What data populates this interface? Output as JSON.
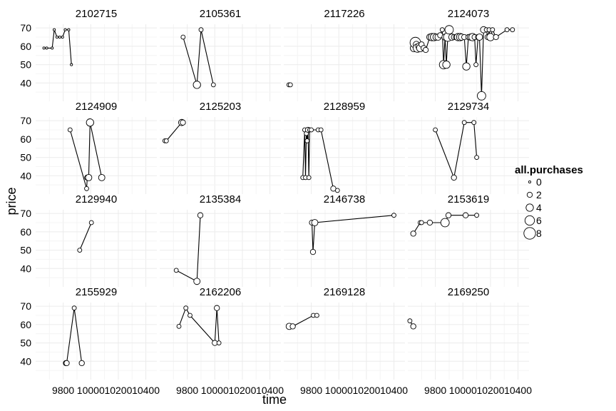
{
  "chart_data": {
    "type": "scatter",
    "xlabel": "time",
    "ylabel": "price",
    "xlim": [
      9600,
      10480
    ],
    "ylim": [
      30,
      72
    ],
    "x_ticks": [
      9800,
      10000,
      10200,
      10400
    ],
    "y_ticks": [
      40,
      50,
      60,
      70
    ],
    "legend": {
      "title": "all.purchases",
      "placement": "right",
      "sizes": [
        0,
        2,
        4,
        6,
        8
      ]
    },
    "panels": [
      {
        "id": "2102715",
        "points": [
          [
            9660,
            59,
            0
          ],
          [
            9680,
            59,
            0
          ],
          [
            9720,
            59,
            0
          ],
          [
            9735,
            69,
            0
          ],
          [
            9755,
            65,
            0
          ],
          [
            9775,
            65,
            0
          ],
          [
            9795,
            65,
            0
          ],
          [
            9815,
            69,
            0
          ],
          [
            9840,
            69,
            0
          ],
          [
            9860,
            50,
            0
          ]
        ]
      },
      {
        "id": "2105361",
        "points": [
          [
            9770,
            65,
            1
          ],
          [
            9870,
            39,
            4
          ],
          [
            9900,
            69,
            1
          ],
          [
            9990,
            39,
            1
          ]
        ]
      },
      {
        "id": "2117226",
        "points": [
          [
            9638,
            39,
            1
          ],
          [
            9648,
            39,
            1
          ]
        ]
      },
      {
        "id": "2124073",
        "points": [
          [
            9645,
            59,
            4
          ],
          [
            9655,
            62,
            7
          ],
          [
            9662,
            61,
            3
          ],
          [
            9670,
            59,
            5
          ],
          [
            9680,
            60,
            3
          ],
          [
            9690,
            59,
            4
          ],
          [
            9700,
            61,
            2
          ],
          [
            9715,
            59,
            2
          ],
          [
            9730,
            58,
            2
          ],
          [
            9760,
            65,
            3
          ],
          [
            9775,
            65,
            4
          ],
          [
            9790,
            65,
            4
          ],
          [
            9805,
            65,
            3
          ],
          [
            9820,
            65,
            3
          ],
          [
            9835,
            66,
            2
          ],
          [
            9850,
            69,
            1
          ],
          [
            9860,
            50,
            5
          ],
          [
            9870,
            65,
            3
          ],
          [
            9880,
            50,
            4
          ],
          [
            9890,
            65,
            5
          ],
          [
            9900,
            69,
            5
          ],
          [
            9920,
            65,
            3
          ],
          [
            9935,
            65,
            2
          ],
          [
            9950,
            65,
            2
          ],
          [
            9965,
            65,
            4
          ],
          [
            9980,
            65,
            4
          ],
          [
            9990,
            65,
            3
          ],
          [
            10010,
            65,
            2
          ],
          [
            10025,
            49,
            4
          ],
          [
            10040,
            65,
            2
          ],
          [
            10055,
            65,
            3
          ],
          [
            10070,
            65,
            4
          ],
          [
            10085,
            65,
            2
          ],
          [
            10095,
            50,
            1
          ],
          [
            10110,
            65,
            2
          ],
          [
            10120,
            65,
            3
          ],
          [
            10135,
            33,
            5
          ],
          [
            10150,
            69,
            3
          ],
          [
            10170,
            69,
            1
          ],
          [
            10180,
            65,
            2
          ],
          [
            10190,
            69,
            1
          ],
          [
            10200,
            65,
            4
          ],
          [
            10215,
            69,
            1
          ],
          [
            10240,
            65,
            2
          ],
          [
            10320,
            69,
            1
          ],
          [
            10360,
            69,
            1
          ]
        ]
      },
      {
        "id": "2124909",
        "points": [
          [
            9850,
            65,
            1
          ],
          [
            9970,
            33,
            1
          ],
          [
            9975,
            39,
            2
          ],
          [
            9985,
            39,
            3
          ],
          [
            9995,
            69,
            4
          ],
          [
            10080,
            39,
            3
          ]
        ]
      },
      {
        "id": "2125203",
        "points": [
          [
            9638,
            59,
            1
          ],
          [
            9648,
            59,
            1
          ],
          [
            9760,
            69,
            3
          ],
          [
            9768,
            69,
            2
          ]
        ]
      },
      {
        "id": "2128959",
        "points": [
          [
            9738,
            39,
            1
          ],
          [
            9752,
            65,
            1
          ],
          [
            9758,
            39,
            1
          ],
          [
            9764,
            63,
            1
          ],
          [
            9770,
            59,
            1
          ],
          [
            9776,
            65,
            2
          ],
          [
            9782,
            39,
            1
          ],
          [
            9788,
            65,
            1
          ],
          [
            9800,
            65,
            1
          ],
          [
            9850,
            65,
            1
          ],
          [
            9870,
            65,
            1
          ],
          [
            9960,
            33,
            2
          ],
          [
            9990,
            32,
            1
          ]
        ]
      },
      {
        "id": "2129734",
        "points": [
          [
            9800,
            65,
            1
          ],
          [
            9935,
            39,
            2
          ],
          [
            10010,
            69,
            1
          ],
          [
            10080,
            69,
            1
          ],
          [
            10100,
            50,
            1
          ]
        ]
      },
      {
        "id": "2129940",
        "points": [
          [
            9920,
            50,
            1
          ],
          [
            10005,
            65,
            1
          ]
        ]
      },
      {
        "id": "2135384",
        "points": [
          [
            9720,
            39,
            1
          ],
          [
            9870,
            33,
            3
          ],
          [
            9895,
            69,
            2
          ]
        ]
      },
      {
        "id": "2146738",
        "points": [
          [
            9805,
            65,
            2
          ],
          [
            9812,
            49,
            2
          ],
          [
            9825,
            65,
            3
          ],
          [
            10400,
            69,
            1
          ]
        ]
      },
      {
        "id": "2153619",
        "points": [
          [
            9640,
            59,
            2
          ],
          [
            9690,
            65,
            1
          ],
          [
            9700,
            65,
            1
          ],
          [
            9760,
            65,
            2
          ],
          [
            9870,
            65,
            5
          ],
          [
            9895,
            69,
            2
          ],
          [
            10020,
            69,
            2
          ],
          [
            10100,
            69,
            1
          ]
        ]
      },
      {
        "id": "2155929",
        "points": [
          [
            9820,
            39,
            2
          ],
          [
            9825,
            39,
            2
          ],
          [
            9880,
            69,
            1
          ],
          [
            9935,
            39,
            2
          ]
        ]
      },
      {
        "id": "2162206",
        "points": [
          [
            9740,
            59,
            1
          ],
          [
            9790,
            69,
            1
          ],
          [
            9820,
            65,
            1
          ],
          [
            10000,
            50,
            2
          ],
          [
            10015,
            69,
            2
          ],
          [
            10030,
            50,
            1
          ]
        ]
      },
      {
        "id": "2169128",
        "points": [
          [
            9640,
            59,
            3
          ],
          [
            9665,
            59,
            2
          ],
          [
            9815,
            65,
            1
          ],
          [
            9840,
            65,
            1
          ]
        ]
      },
      {
        "id": "2169250",
        "points": [
          [
            9615,
            62,
            1
          ],
          [
            9640,
            59,
            2
          ]
        ]
      }
    ]
  }
}
